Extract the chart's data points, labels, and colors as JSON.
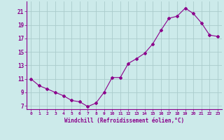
{
  "x": [
    0,
    1,
    2,
    3,
    4,
    5,
    6,
    7,
    8,
    9,
    10,
    11,
    12,
    13,
    14,
    15,
    16,
    17,
    18,
    19,
    20,
    21,
    22,
    23
  ],
  "y": [
    11.0,
    10.0,
    9.5,
    9.0,
    8.5,
    7.8,
    7.6,
    6.9,
    7.4,
    9.0,
    11.2,
    11.2,
    13.3,
    14.0,
    14.8,
    16.2,
    18.2,
    20.0,
    20.3,
    21.5,
    20.7,
    19.3,
    17.5,
    17.3
  ],
  "line_color": "#8B008B",
  "marker": "D",
  "marker_size": 2,
  "bg_color": "#cceaea",
  "grid_color": "#aacccc",
  "xlabel": "Windchill (Refroidissement éolien,°C)",
  "xlabel_color": "#8B008B",
  "tick_color": "#8B008B",
  "xlim": [
    -0.5,
    23.5
  ],
  "ylim": [
    6.5,
    22.5
  ],
  "yticks": [
    7,
    9,
    11,
    13,
    15,
    17,
    19,
    21
  ],
  "xticks": [
    0,
    1,
    2,
    3,
    4,
    5,
    6,
    7,
    8,
    9,
    10,
    11,
    12,
    13,
    14,
    15,
    16,
    17,
    18,
    19,
    20,
    21,
    22,
    23
  ],
  "xtick_labels": [
    "0",
    "1",
    "2",
    "3",
    "4",
    "5",
    "6",
    "7",
    "8",
    "9",
    "10",
    "11",
    "12",
    "13",
    "14",
    "15",
    "16",
    "17",
    "18",
    "19",
    "20",
    "21",
    "22",
    "23"
  ]
}
